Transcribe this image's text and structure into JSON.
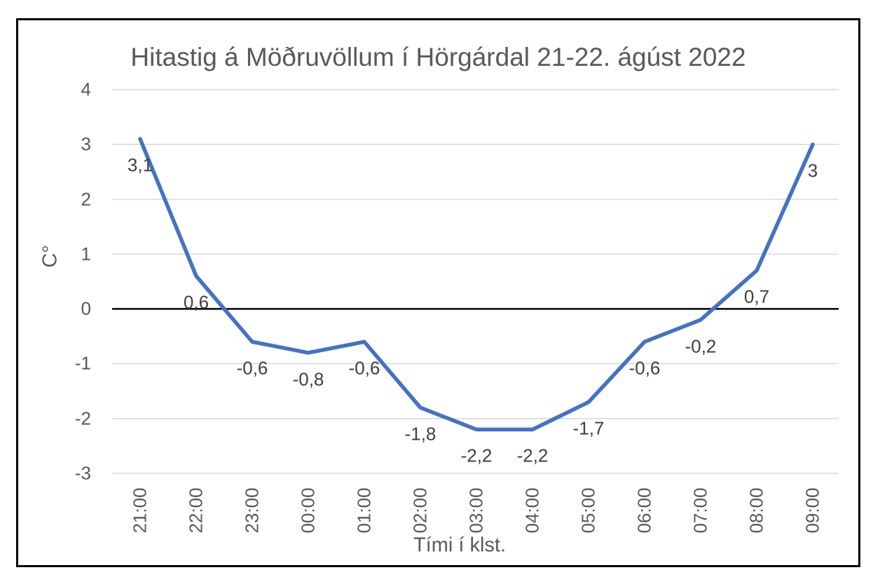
{
  "chart": {
    "title": "Hitastig á Möðruvöllum í Hörgárdal 21-22. ágúst 2022",
    "x_axis_title": "Tími í klst.",
    "y_axis_title": "C°"
  },
  "chart_data": {
    "type": "line",
    "title": "Hitastig á Möðruvöllum í Hörgárdal 21-22. ágúst 2022",
    "xlabel": "Tími í klst.",
    "ylabel": "C°",
    "categories": [
      "21:00",
      "22:00",
      "23:00",
      "00:00",
      "01:00",
      "02:00",
      "03:00",
      "04:00",
      "05:00",
      "06:00",
      "07:00",
      "08:00",
      "09:00"
    ],
    "values": [
      3.1,
      0.6,
      -0.6,
      -0.8,
      -0.6,
      -1.8,
      -2.2,
      -2.2,
      -1.7,
      -0.6,
      -0.2,
      0.7,
      3
    ],
    "data_labels": [
      "3,1",
      "0,6",
      "-0,6",
      "-0,8",
      "-0,6",
      "-1,8",
      "-2,2",
      "-2,2",
      "-1,7",
      "-0,6",
      "-0,2",
      "0,7",
      "3"
    ],
    "y_ticks": [
      4,
      3,
      2,
      1,
      0,
      -1,
      -2,
      -3
    ],
    "y_tick_labels": [
      "4",
      "3",
      "2",
      "1",
      "0",
      "-1",
      "-2",
      "-3"
    ],
    "ylim": [
      -3,
      4
    ],
    "grid": true,
    "legend": "none",
    "colors": {
      "line": "#4472C4",
      "gridline": "#D9D9D9",
      "zero_axis": "#000000",
      "tick_text": "#595959",
      "data_label_text": "#404040",
      "title_text": "#595959",
      "border": "#000000"
    }
  }
}
